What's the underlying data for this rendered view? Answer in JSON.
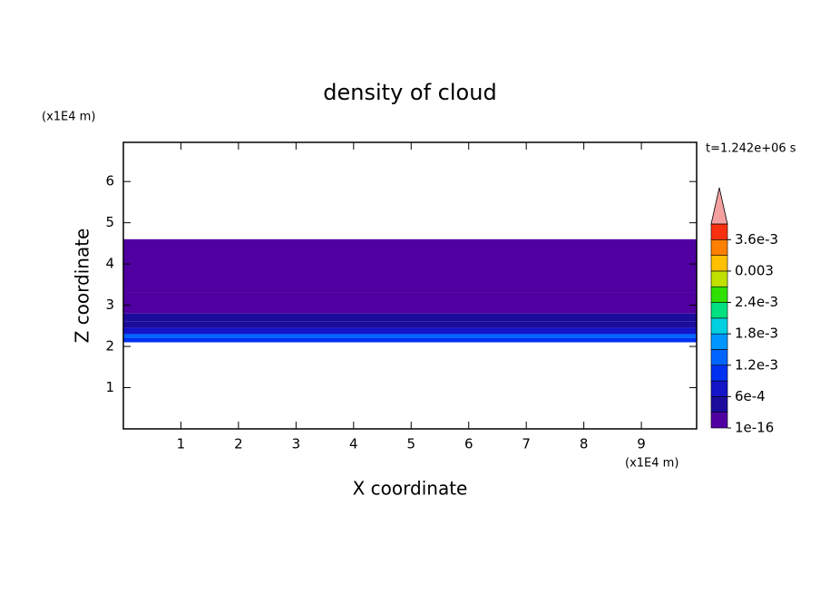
{
  "chart_data": {
    "type": "contour",
    "title": "density of cloud",
    "x_label": "X coordinate",
    "y_label": "Z coordinate",
    "x_unit": "(x1E4 m)",
    "y_unit": "(x1E4 m)",
    "time_label": "t=1.242e+06 s",
    "xlim": [
      0,
      9.96
    ],
    "ylim": [
      0,
      6.95
    ],
    "xticks": [
      1,
      2,
      3,
      4,
      5,
      6,
      7,
      8,
      9
    ],
    "yticks": [
      1,
      2,
      3,
      4,
      5,
      6
    ],
    "field": {
      "z": [
        2.1,
        2.2,
        2.3,
        2.45,
        2.6,
        2.8,
        3.3,
        4.6
      ],
      "values": [
        0.0011,
        0.0013,
        0.0007,
        0.0005,
        0.0004,
        0.0002,
        0.0001
      ]
    },
    "colorbar": {
      "levels": [
        1e-16,
        0.0003,
        0.0006,
        0.0009,
        0.0012,
        0.0015,
        0.0018,
        0.0021,
        0.0024,
        0.0027,
        0.003,
        0.0033,
        0.0036,
        0.0039
      ],
      "ticks": [
        {
          "value": 1e-16,
          "label": "1e-16"
        },
        {
          "value": 0.0006,
          "label": "6e-4"
        },
        {
          "value": 0.0012,
          "label": "1.2e-3"
        },
        {
          "value": 0.0018,
          "label": "1.8e-3"
        },
        {
          "value": 0.0024,
          "label": "2.4e-3"
        },
        {
          "value": 0.003,
          "label": "0.003"
        },
        {
          "value": 0.0036,
          "label": "3.6e-3"
        }
      ],
      "colors": [
        "#5000a0",
        "#1c0c9c",
        "#1414c8",
        "#0030f0",
        "#0064ff",
        "#0096ff",
        "#00d0e0",
        "#00e080",
        "#30e000",
        "#c0e000",
        "#ffc000",
        "#ff8000",
        "#f83010"
      ],
      "extend_color": "#f4a0a0"
    }
  }
}
